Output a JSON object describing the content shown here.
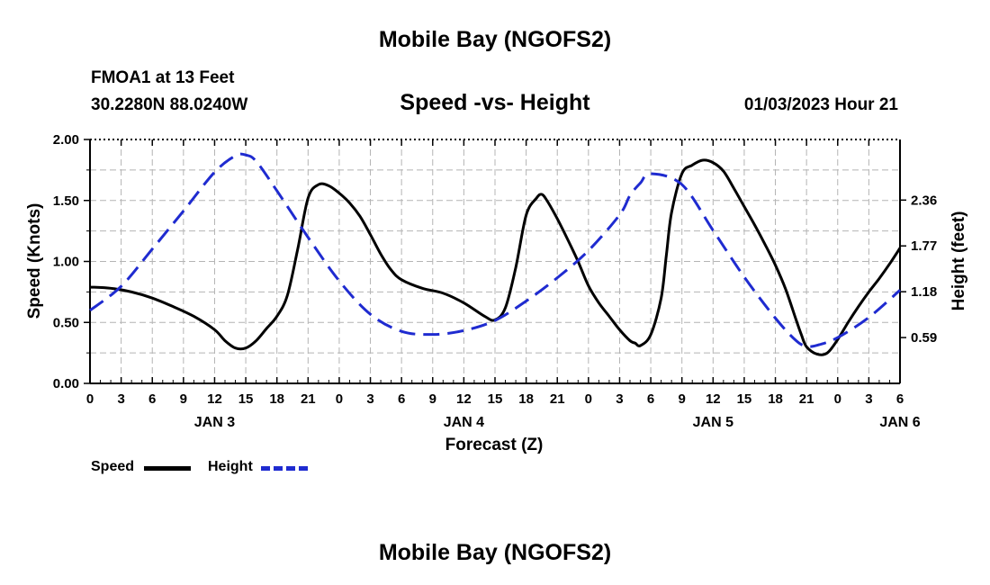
{
  "page": {
    "title": "Mobile Bay (NGOFS2)",
    "footer_title": "Mobile Bay (NGOFS2)"
  },
  "header": {
    "station_name": "FMOA1 at 13 Feet",
    "station_coords": "30.2280N  88.0240W",
    "chart_title": "Speed -vs- Height",
    "run_time": "01/03/2023 Hour 21"
  },
  "legend": {
    "speed_label": "Speed",
    "height_label": "Height"
  },
  "colors": {
    "speed": "#000000",
    "height": "#1f2bd0",
    "grid": "#b4b4b4"
  },
  "chart_data": {
    "type": "line",
    "title": "Speed -vs- Height",
    "xlabel": "Forecast (Z)",
    "ylabel_left": "Speed (Knots)",
    "ylabel_right": "Height (feet)",
    "x_unit": "hours since Jan 3 00Z",
    "xlim": [
      0,
      78
    ],
    "ylim_left": [
      0,
      2
    ],
    "ylim_right": [
      0,
      3.14
    ],
    "grid": true,
    "legend_position": "bottom-left",
    "x_ticks": [
      0,
      3,
      6,
      9,
      12,
      15,
      18,
      21,
      24,
      27,
      30,
      33,
      36,
      39,
      42,
      45,
      48,
      51,
      54,
      57,
      60,
      63,
      66,
      69,
      72,
      75,
      78
    ],
    "x_tick_labels": [
      "0",
      "3",
      "6",
      "9",
      "12",
      "15",
      "18",
      "21",
      "0",
      "3",
      "6",
      "9",
      "12",
      "15",
      "18",
      "21",
      "0",
      "3",
      "6",
      "9",
      "12",
      "15",
      "18",
      "21",
      "0",
      "3",
      "6"
    ],
    "day_labels": [
      {
        "label": "JAN 3",
        "hour": 12
      },
      {
        "label": "JAN 4",
        "hour": 36
      },
      {
        "label": "JAN 5",
        "hour": 60
      },
      {
        "label": "JAN 6",
        "hour": 78
      }
    ],
    "y_left_ticks": [
      0,
      0.5,
      1.0,
      1.5,
      2.0
    ],
    "y_left_tick_labels": [
      "0.00",
      "0.50",
      "1.00",
      "1.50",
      "2.00"
    ],
    "y_right_ticks": [
      0.59,
      1.18,
      1.77,
      2.36
    ],
    "y_right_tick_labels": [
      "0.59",
      "1.18",
      "1.77",
      "2.36"
    ],
    "series": [
      {
        "name": "Speed",
        "axis": "left",
        "style": "solid",
        "x": [
          0,
          2,
          4,
          6,
          8,
          10,
          12,
          13,
          14,
          15,
          16,
          17,
          18,
          19,
          20,
          21,
          22,
          23,
          24,
          25,
          26,
          27,
          28,
          29,
          30,
          32,
          34,
          36,
          38,
          39,
          40,
          41,
          42,
          43,
          43.5,
          44,
          45,
          46,
          47,
          48,
          49,
          50,
          51,
          52,
          52.5,
          53,
          54,
          55,
          55.5,
          56,
          57,
          58,
          59,
          60,
          61,
          62,
          63,
          64,
          65,
          66,
          67,
          68,
          68.5,
          69,
          70,
          71,
          72,
          73,
          74,
          75,
          76,
          77,
          78
        ],
        "values": [
          0.79,
          0.78,
          0.75,
          0.7,
          0.63,
          0.55,
          0.44,
          0.35,
          0.29,
          0.29,
          0.35,
          0.45,
          0.55,
          0.72,
          1.1,
          1.52,
          1.63,
          1.62,
          1.56,
          1.48,
          1.37,
          1.22,
          1.06,
          0.93,
          0.85,
          0.78,
          0.74,
          0.66,
          0.55,
          0.52,
          0.62,
          0.95,
          1.38,
          1.52,
          1.55,
          1.5,
          1.35,
          1.18,
          1.0,
          0.8,
          0.66,
          0.55,
          0.44,
          0.35,
          0.33,
          0.31,
          0.4,
          0.7,
          1.05,
          1.4,
          1.72,
          1.79,
          1.83,
          1.81,
          1.74,
          1.6,
          1.45,
          1.3,
          1.14,
          0.97,
          0.77,
          0.52,
          0.4,
          0.3,
          0.24,
          0.25,
          0.36,
          0.5,
          0.63,
          0.75,
          0.86,
          0.98,
          1.11
        ]
      },
      {
        "name": "Height",
        "axis": "right",
        "style": "dashed",
        "x": [
          0,
          3,
          6,
          9,
          12,
          14,
          15,
          16,
          18,
          21,
          24,
          27,
          30,
          33,
          36,
          39,
          42,
          45,
          48,
          51,
          52,
          53,
          54,
          57,
          60,
          63,
          66,
          68,
          69,
          70,
          72,
          75,
          78
        ],
        "values": [
          0.94,
          1.25,
          1.73,
          2.22,
          2.72,
          2.93,
          2.94,
          2.86,
          2.48,
          1.88,
          1.32,
          0.89,
          0.67,
          0.63,
          0.68,
          0.81,
          1.06,
          1.36,
          1.71,
          2.17,
          2.42,
          2.58,
          2.7,
          2.56,
          1.97,
          1.37,
          0.84,
          0.55,
          0.48,
          0.49,
          0.59,
          0.85,
          1.2
        ]
      }
    ]
  }
}
